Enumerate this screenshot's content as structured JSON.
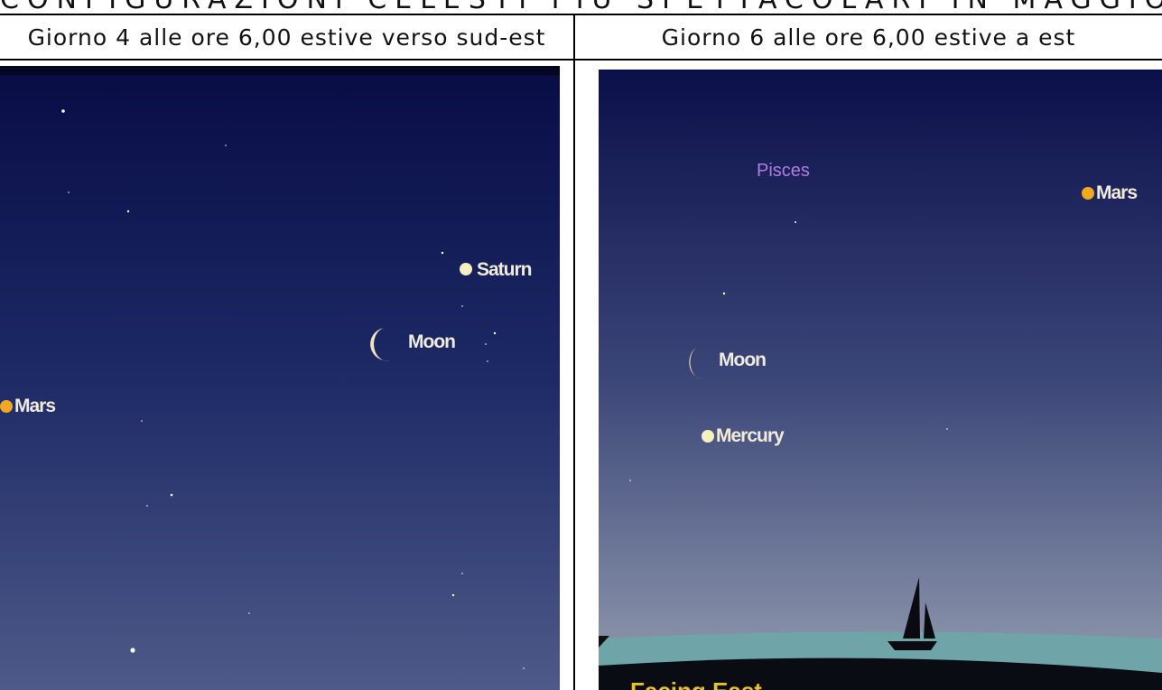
{
  "header": {
    "title": "CONFIGURAZIONI CELESTI PIÙ SPETTACOLARI IN MAGGIO"
  },
  "table": {
    "columns": [
      {
        "caption": "Giorno 4 alle ore 6,00 estive verso sud-est",
        "labels": {
          "saturn": "Saturn",
          "moon": "Moon",
          "mars": "Mars"
        }
      },
      {
        "caption": "Giorno 6 alle ore 6,00 estive a est",
        "labels": {
          "constellation": "Pisces",
          "mars": "Mars",
          "moon": "Moon",
          "mercury": "Mercury",
          "direction": "Facing East"
        }
      }
    ]
  }
}
